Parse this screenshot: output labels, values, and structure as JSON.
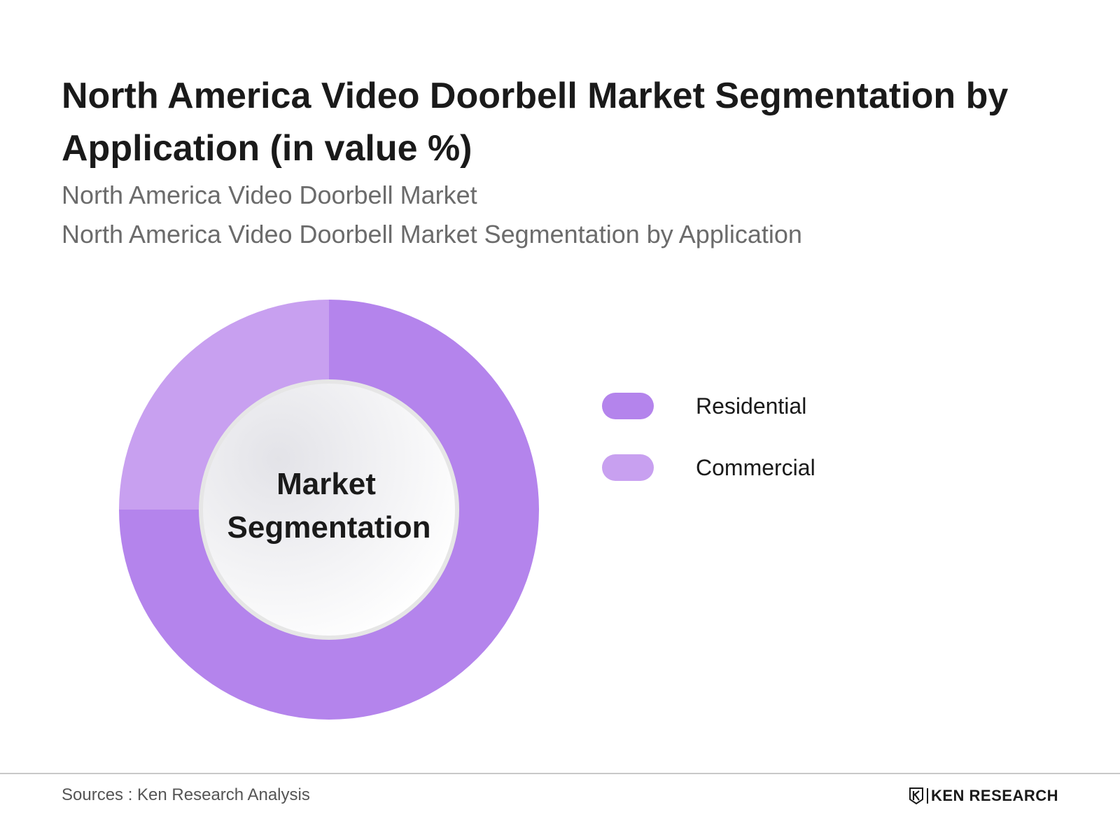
{
  "header": {
    "title": "North America Video Doorbell Market Segmentation by Application (in value %)",
    "subtitle_1": "North America Video Doorbell Market",
    "subtitle_2": "North America Video Doorbell Market Segmentation by Application"
  },
  "chart_data": {
    "type": "pie",
    "variant": "donut",
    "center_label_line1": "Market",
    "center_label_line2": "Segmentation",
    "categories": [
      "Residential",
      "Commercial"
    ],
    "values": [
      75,
      25
    ],
    "colors": [
      "#b484ec",
      "#c8a0f0"
    ],
    "legend": {
      "position": "right",
      "items": [
        "Residential",
        "Commercial"
      ]
    }
  },
  "footer": {
    "source": "Sources : Ken Research Analysis",
    "brand": "KEN RESEARCH"
  }
}
